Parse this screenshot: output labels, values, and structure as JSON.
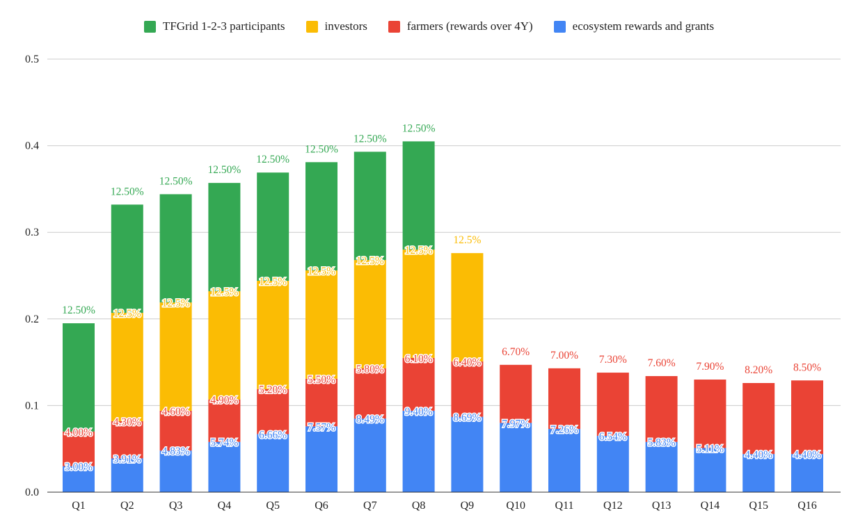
{
  "chart_data": {
    "type": "bar",
    "stacked": true,
    "title": "",
    "xlabel": "",
    "ylabel": "",
    "categories": [
      "Q1",
      "Q2",
      "Q3",
      "Q4",
      "Q5",
      "Q6",
      "Q7",
      "Q8",
      "Q9",
      "Q10",
      "Q11",
      "Q12",
      "Q13",
      "Q14",
      "Q15",
      "Q16"
    ],
    "ylim": [
      0,
      0.5
    ],
    "yticks": [
      "0.0",
      "0.1",
      "0.2",
      "0.3",
      "0.4",
      "0.5"
    ],
    "grid": true,
    "legend_position": "top",
    "series": [
      {
        "name": "ecosystem rewards and grants",
        "color": "#4285f4",
        "values": [
          0.03,
          0.039,
          0.048,
          0.058,
          0.067,
          0.076,
          0.085,
          0.094,
          0.087,
          0.08,
          0.073,
          0.065,
          0.058,
          0.051,
          0.044,
          0.044
        ],
        "labels": [
          "3.00%",
          "3.91%",
          "4.83%",
          "5.74%",
          "6.66%",
          "7.57%",
          "8.49%",
          "9.40%",
          "8.69%",
          "7.97%",
          "7.26%",
          "6.54%",
          "5.83%",
          "5.11%",
          "4.40%",
          "4.40%"
        ],
        "label_color": "#4285f4"
      },
      {
        "name": "farmers (rewards over 4Y)",
        "color": "#ea4335",
        "values": [
          0.04,
          0.043,
          0.046,
          0.049,
          0.052,
          0.055,
          0.058,
          0.061,
          0.064,
          0.067,
          0.07,
          0.073,
          0.076,
          0.079,
          0.082,
          0.085
        ],
        "labels": [
          "4.00%",
          "4.30%",
          "4.60%",
          "4.90%",
          "5.20%",
          "5.50%",
          "5.80%",
          "6.10%",
          "6.40%",
          "6.70%",
          "7.00%",
          "7.30%",
          "7.60%",
          "7.90%",
          "8.20%",
          "8.50%"
        ],
        "label_color": "#ea4335"
      },
      {
        "name": "investors",
        "color": "#fbbc04",
        "values": [
          0,
          0.125,
          0.125,
          0.125,
          0.125,
          0.125,
          0.125,
          0.125,
          0.125,
          0,
          0,
          0,
          0,
          0,
          0,
          0
        ],
        "labels": [
          "",
          "12.5%",
          "12.5%",
          "12.5%",
          "12.5%",
          "12.5%",
          "12.5%",
          "12.5%",
          "12.5%",
          "",
          "",
          "",
          "",
          "",
          "",
          ""
        ],
        "label_color": "#fbbc04"
      },
      {
        "name": "TFGrid 1-2-3 participants",
        "color": "#34a853",
        "values": [
          0.125,
          0.125,
          0.125,
          0.125,
          0.125,
          0.125,
          0.125,
          0.125,
          0,
          0,
          0,
          0,
          0,
          0,
          0,
          0
        ],
        "labels": [
          "12.50%",
          "12.50%",
          "12.50%",
          "12.50%",
          "12.50%",
          "12.50%",
          "12.50%",
          "12.50%",
          "",
          "",
          "",
          "",
          "",
          "",
          "",
          ""
        ],
        "label_color": "#34a853"
      }
    ],
    "legend_order": [
      "TFGrid 1-2-3 participants",
      "investors",
      "farmers (rewards over 4Y)",
      "ecosystem rewards and grants"
    ]
  }
}
